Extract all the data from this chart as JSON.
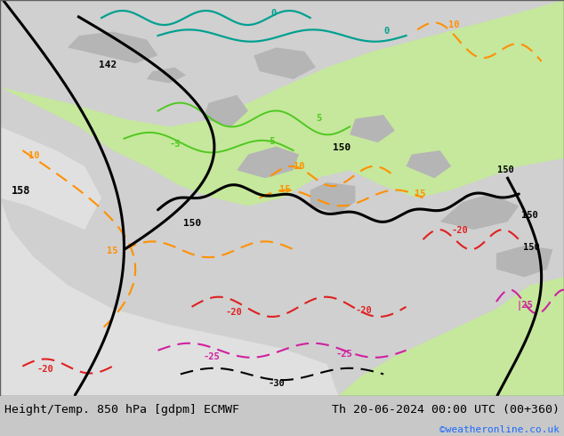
{
  "title_left": "Height/Temp. 850 hPa [gdpm] ECMWF",
  "title_right": "Th 20-06-2024 00:00 UTC (00+360)",
  "copyright": "©weatheronline.co.uk",
  "copyright_color": "#1a6aff",
  "bottom_bar_color": "#d8d8d8",
  "bottom_text_color": "#000000",
  "contour_black_color": "#000000",
  "contour_green_color": "#50c820",
  "contour_teal_color": "#00a090",
  "contour_orange_color": "#ff9000",
  "contour_red_color": "#e02020",
  "contour_magenta_color": "#d020a0",
  "fig_width": 6.34,
  "fig_height": 4.9,
  "dpi": 100,
  "bottom_bar_height": 0.092
}
